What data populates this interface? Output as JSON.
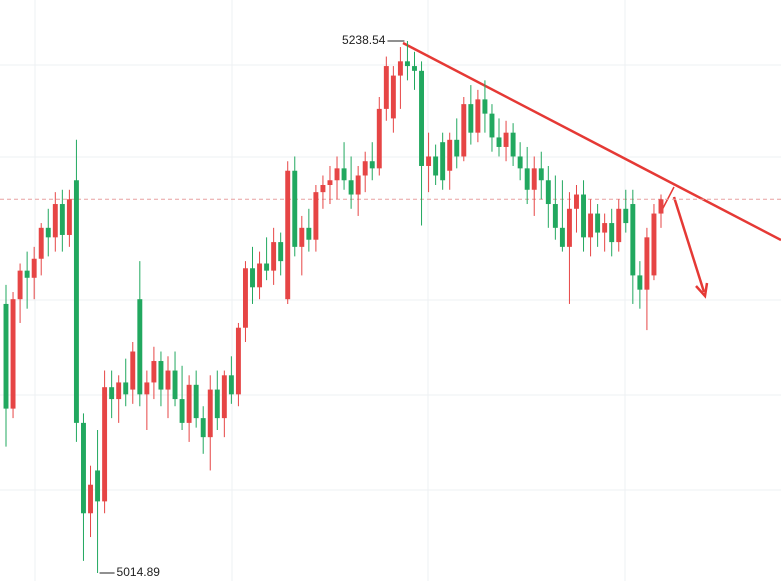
{
  "chart_data": {
    "type": "candlestick",
    "up_color": "#e64545",
    "down_color": "#21a85f",
    "candles": [
      [
        5128,
        5136,
        5068,
        5084
      ],
      [
        5084,
        5133,
        5080,
        5130
      ],
      [
        5130,
        5145,
        5120,
        5142
      ],
      [
        5142,
        5150,
        5126,
        5139
      ],
      [
        5139,
        5152,
        5130,
        5147
      ],
      [
        5147,
        5162,
        5140,
        5160
      ],
      [
        5160,
        5168,
        5148,
        5156
      ],
      [
        5156,
        5175,
        5150,
        5170
      ],
      [
        5170,
        5176,
        5150,
        5157
      ],
      [
        5157,
        5176,
        5152,
        5172
      ],
      [
        5180,
        5197,
        5070,
        5078
      ],
      [
        5078,
        5082,
        5020,
        5040
      ],
      [
        5040,
        5060,
        5030,
        5052
      ],
      [
        5058,
        5075,
        5014.89,
        5045
      ],
      [
        5045,
        5100,
        5040,
        5093
      ],
      [
        5093,
        5100,
        5080,
        5088
      ],
      [
        5088,
        5098,
        5078,
        5095
      ],
      [
        5095,
        5105,
        5085,
        5090
      ],
      [
        5092,
        5112,
        5086,
        5108
      ],
      [
        5130,
        5146,
        5085,
        5090
      ],
      [
        5090,
        5100,
        5075,
        5095
      ],
      [
        5095,
        5110,
        5088,
        5104
      ],
      [
        5104,
        5108,
        5085,
        5092
      ],
      [
        5092,
        5106,
        5080,
        5100
      ],
      [
        5100,
        5108,
        5085,
        5088
      ],
      [
        5088,
        5102,
        5075,
        5078
      ],
      [
        5078,
        5098,
        5070,
        5094
      ],
      [
        5094,
        5100,
        5076,
        5080
      ],
      [
        5080,
        5085,
        5065,
        5072
      ],
      [
        5072,
        5098,
        5058,
        5092
      ],
      [
        5092,
        5100,
        5075,
        5080
      ],
      [
        5080,
        5100,
        5072,
        5098
      ],
      [
        5098,
        5106,
        5086,
        5090
      ],
      [
        5090,
        5120,
        5085,
        5118
      ],
      [
        5118,
        5146,
        5112,
        5143
      ],
      [
        5143,
        5152,
        5128,
        5135
      ],
      [
        5135,
        5150,
        5130,
        5145
      ],
      [
        5145,
        5156,
        5138,
        5142
      ],
      [
        5142,
        5160,
        5136,
        5154
      ],
      [
        5154,
        5158,
        5140,
        5146
      ],
      [
        5130,
        5188,
        5128,
        5184
      ],
      [
        5184,
        5190,
        5148,
        5152
      ],
      [
        5152,
        5165,
        5140,
        5160
      ],
      [
        5160,
        5168,
        5150,
        5155
      ],
      [
        5155,
        5178,
        5150,
        5175
      ],
      [
        5175,
        5182,
        5168,
        5178
      ],
      [
        5178,
        5186,
        5170,
        5180
      ],
      [
        5180,
        5190,
        5172,
        5185
      ],
      [
        5185,
        5196,
        5176,
        5180
      ],
      [
        5180,
        5190,
        5168,
        5174
      ],
      [
        5174,
        5186,
        5165,
        5182
      ],
      [
        5182,
        5192,
        5175,
        5188
      ],
      [
        5188,
        5196,
        5180,
        5185
      ],
      [
        5185,
        5215,
        5182,
        5210
      ],
      [
        5210,
        5232,
        5205,
        5228
      ],
      [
        5206,
        5228,
        5200,
        5224
      ],
      [
        5224,
        5236,
        5210,
        5230
      ],
      [
        5230,
        5238.54,
        5222,
        5228
      ],
      [
        5228,
        5234,
        5218,
        5226
      ],
      [
        5226,
        5230,
        5161,
        5186
      ],
      [
        5186,
        5200,
        5175,
        5190
      ],
      [
        5190,
        5195,
        5178,
        5182
      ],
      [
        5196,
        5200,
        5176,
        5180
      ],
      [
        5184,
        5200,
        5176,
        5197
      ],
      [
        5197,
        5206,
        5185,
        5190
      ],
      [
        5190,
        5215,
        5188,
        5212
      ],
      [
        5212,
        5220,
        5195,
        5200
      ],
      [
        5200,
        5218,
        5196,
        5214
      ],
      [
        5214,
        5222,
        5200,
        5208
      ],
      [
        5208,
        5212,
        5192,
        5198
      ],
      [
        5198,
        5206,
        5190,
        5194
      ],
      [
        5194,
        5205,
        5188,
        5200
      ],
      [
        5200,
        5204,
        5186,
        5190
      ],
      [
        5190,
        5196,
        5180,
        5185
      ],
      [
        5185,
        5194,
        5170,
        5176
      ],
      [
        5176,
        5190,
        5165,
        5185
      ],
      [
        5185,
        5192,
        5172,
        5180
      ],
      [
        5180,
        5186,
        5160,
        5170
      ],
      [
        5170,
        5182,
        5155,
        5160
      ],
      [
        5160,
        5180,
        5150,
        5152
      ],
      [
        5152,
        5175,
        5128,
        5168
      ],
      [
        5168,
        5178,
        5158,
        5174
      ],
      [
        5174,
        5180,
        5150,
        5156
      ],
      [
        5156,
        5172,
        5148,
        5166
      ],
      [
        5166,
        5170,
        5152,
        5158
      ],
      [
        5158,
        5166,
        5150,
        5162
      ],
      [
        5162,
        5168,
        5148,
        5154
      ],
      [
        5154,
        5172,
        5150,
        5168
      ],
      [
        5168,
        5176,
        5158,
        5162
      ],
      [
        5170,
        5176,
        5128,
        5140
      ],
      [
        5140,
        5146,
        5126,
        5134
      ],
      [
        5134,
        5160,
        5117,
        5156
      ],
      [
        5140,
        5170,
        5138,
        5166
      ],
      [
        5166,
        5174,
        5160,
        5172
      ]
    ]
  }
}
